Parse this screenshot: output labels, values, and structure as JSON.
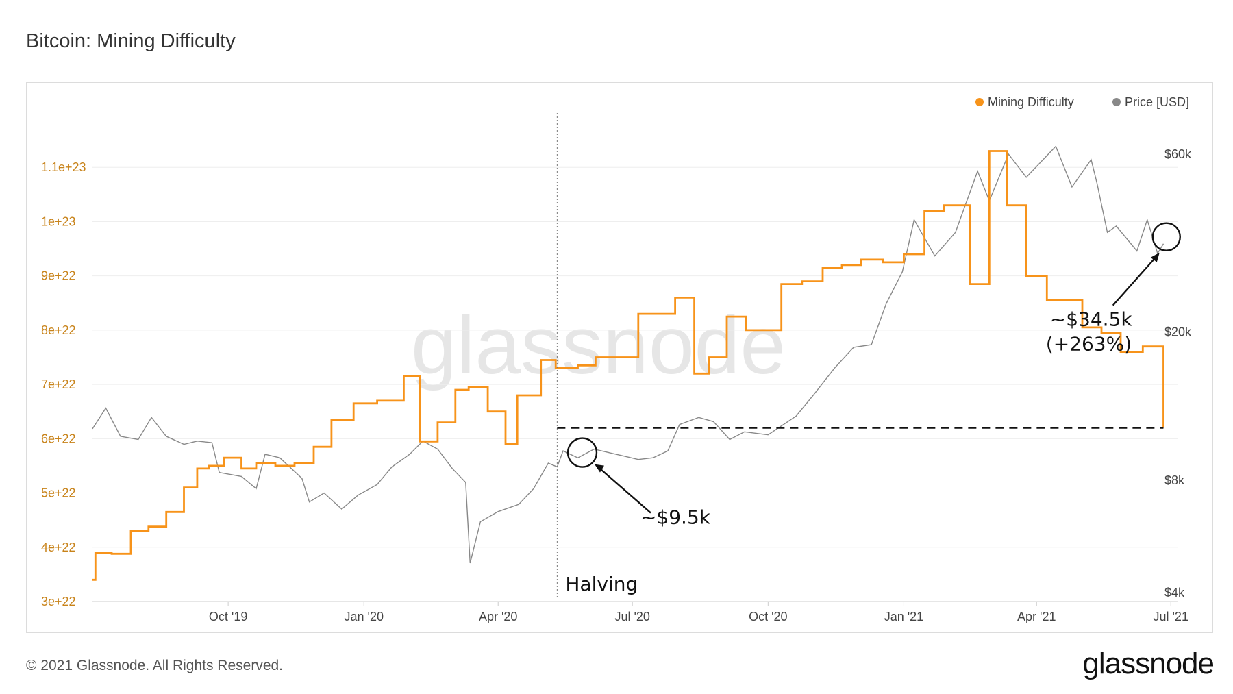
{
  "title": "Bitcoin: Mining Difficulty",
  "footer": "© 2021 Glassnode. All Rights Reserved.",
  "brand": "glassnode",
  "watermark": "glassnode",
  "colors": {
    "difficulty": "#f7931a",
    "price": "#888888",
    "left_axis": "#c8831a"
  },
  "chart_data": {
    "type": "line",
    "title": "Bitcoin: Mining Difficulty",
    "x_range": [
      "2019-07-01",
      "2021-07-06"
    ],
    "x_ticks": [
      {
        "date": "2019-10-01",
        "label": "Oct '19"
      },
      {
        "date": "2020-01-01",
        "label": "Jan '20"
      },
      {
        "date": "2020-04-01",
        "label": "Apr '20"
      },
      {
        "date": "2020-07-01",
        "label": "Jul '20"
      },
      {
        "date": "2020-10-01",
        "label": "Oct '20"
      },
      {
        "date": "2021-01-01",
        "label": "Jan '21"
      },
      {
        "date": "2021-04-01",
        "label": "Apr '21"
      },
      {
        "date": "2021-07-01",
        "label": "Jul '21"
      }
    ],
    "left_axis": {
      "range": [
        3e+22,
        1.2e+23
      ],
      "ticks": [
        {
          "value": 3e+22,
          "label": "3e+22"
        },
        {
          "value": 4e+22,
          "label": "4e+22"
        },
        {
          "value": 5e+22,
          "label": "5e+22"
        },
        {
          "value": 6e+22,
          "label": "6e+22"
        },
        {
          "value": 7e+22,
          "label": "7e+22"
        },
        {
          "value": 8e+22,
          "label": "8e+22"
        },
        {
          "value": 9e+22,
          "label": "9e+22"
        },
        {
          "value": 1e+23,
          "label": "1e+23"
        },
        {
          "value": 1.1e+23,
          "label": "1.1e+23"
        }
      ]
    },
    "right_axis": {
      "scale": "log",
      "range": [
        4000,
        60000
      ],
      "ticks": [
        {
          "value": 4000,
          "label": "$4k"
        },
        {
          "value": 8000,
          "label": "$8k"
        },
        {
          "value": 20000,
          "label": "$20k"
        },
        {
          "value": 60000,
          "label": "$60k"
        }
      ]
    },
    "legend": {
      "placement": "top-right",
      "items": [
        "Mining Difficulty",
        "Price [USD]"
      ]
    },
    "grid": true,
    "series": [
      {
        "name": "Mining Difficulty",
        "axis": "left",
        "step": true,
        "points": [
          [
            "2019-07-01",
            3.4e+22
          ],
          [
            "2019-07-03",
            3.9e+22
          ],
          [
            "2019-07-14",
            3.88e+22
          ],
          [
            "2019-07-27",
            4.3e+22
          ],
          [
            "2019-08-08",
            4.38e+22
          ],
          [
            "2019-08-20",
            4.65e+22
          ],
          [
            "2019-09-01",
            5.1e+22
          ],
          [
            "2019-09-10",
            5.45e+22
          ],
          [
            "2019-09-18",
            5.5e+22
          ],
          [
            "2019-09-28",
            5.65e+22
          ],
          [
            "2019-10-10",
            5.45e+22
          ],
          [
            "2019-10-20",
            5.55e+22
          ],
          [
            "2019-11-02",
            5.5e+22
          ],
          [
            "2019-11-15",
            5.55e+22
          ],
          [
            "2019-11-28",
            5.85e+22
          ],
          [
            "2019-12-10",
            6.35e+22
          ],
          [
            "2019-12-25",
            6.65e+22
          ],
          [
            "2020-01-10",
            6.7e+22
          ],
          [
            "2020-01-28",
            7.15e+22
          ],
          [
            "2020-02-08",
            5.95e+22
          ],
          [
            "2020-02-20",
            6.3e+22
          ],
          [
            "2020-03-03",
            6.9e+22
          ],
          [
            "2020-03-12",
            6.95e+22
          ],
          [
            "2020-03-25",
            6.5e+22
          ],
          [
            "2020-04-06",
            5.9e+22
          ],
          [
            "2020-04-14",
            6.8e+22
          ],
          [
            "2020-04-30",
            7.45e+22
          ],
          [
            "2020-05-10",
            7.3e+22
          ],
          [
            "2020-05-25",
            7.35e+22
          ],
          [
            "2020-06-06",
            7.5e+22
          ],
          [
            "2020-06-20",
            7.5e+22
          ],
          [
            "2020-07-05",
            8.3e+22
          ],
          [
            "2020-07-20",
            8.3e+22
          ],
          [
            "2020-07-30",
            8.6e+22
          ],
          [
            "2020-08-12",
            7.2e+22
          ],
          [
            "2020-08-22",
            7.5e+22
          ],
          [
            "2020-09-03",
            8.25e+22
          ],
          [
            "2020-09-16",
            8e+22
          ],
          [
            "2020-09-28",
            8e+22
          ],
          [
            "2020-10-10",
            8.85e+22
          ],
          [
            "2020-10-24",
            8.9e+22
          ],
          [
            "2020-11-07",
            9.15e+22
          ],
          [
            "2020-11-20",
            9.2e+22
          ],
          [
            "2020-12-03",
            9.3e+22
          ],
          [
            "2020-12-18",
            9.25e+22
          ],
          [
            "2021-01-01",
            9.4e+22
          ],
          [
            "2021-01-15",
            1.02e+23
          ],
          [
            "2021-01-28",
            1.03e+23
          ],
          [
            "2021-02-15",
            8.85e+22
          ],
          [
            "2021-02-28",
            1.13e+23
          ],
          [
            "2021-03-12",
            1.03e+23
          ],
          [
            "2021-03-25",
            9e+22
          ],
          [
            "2021-04-08",
            8.55e+22
          ],
          [
            "2021-04-20",
            8.55e+22
          ],
          [
            "2021-05-02",
            8.05e+22
          ],
          [
            "2021-05-15",
            7.95e+22
          ],
          [
            "2021-05-28",
            7.6e+22
          ],
          [
            "2021-06-12",
            7.7e+22
          ],
          [
            "2021-06-26",
            6.2e+22
          ]
        ]
      },
      {
        "name": "Price [USD]",
        "axis": "right",
        "points": [
          [
            "2019-07-01",
            11000
          ],
          [
            "2019-07-10",
            12500
          ],
          [
            "2019-07-20",
            10500
          ],
          [
            "2019-08-01",
            10300
          ],
          [
            "2019-08-10",
            11800
          ],
          [
            "2019-08-20",
            10500
          ],
          [
            "2019-09-01",
            10000
          ],
          [
            "2019-09-10",
            10200
          ],
          [
            "2019-09-20",
            10100
          ],
          [
            "2019-09-25",
            8400
          ],
          [
            "2019-10-10",
            8200
          ],
          [
            "2019-10-20",
            7600
          ],
          [
            "2019-10-26",
            9400
          ],
          [
            "2019-11-05",
            9200
          ],
          [
            "2019-11-20",
            8100
          ],
          [
            "2019-11-25",
            7000
          ],
          [
            "2019-12-05",
            7400
          ],
          [
            "2019-12-17",
            6700
          ],
          [
            "2019-12-28",
            7300
          ],
          [
            "2020-01-10",
            7800
          ],
          [
            "2020-01-20",
            8700
          ],
          [
            "2020-02-01",
            9400
          ],
          [
            "2020-02-10",
            10200
          ],
          [
            "2020-02-20",
            9700
          ],
          [
            "2020-03-01",
            8600
          ],
          [
            "2020-03-10",
            7900
          ],
          [
            "2020-03-13",
            4800
          ],
          [
            "2020-03-20",
            6200
          ],
          [
            "2020-04-01",
            6600
          ],
          [
            "2020-04-15",
            6900
          ],
          [
            "2020-04-25",
            7600
          ],
          [
            "2020-05-05",
            8900
          ],
          [
            "2020-05-11",
            8700
          ],
          [
            "2020-05-15",
            9600
          ],
          [
            "2020-05-25",
            9200
          ],
          [
            "2020-06-05",
            9700
          ],
          [
            "2020-06-15",
            9500
          ],
          [
            "2020-06-25",
            9300
          ],
          [
            "2020-07-05",
            9100
          ],
          [
            "2020-07-15",
            9200
          ],
          [
            "2020-07-25",
            9600
          ],
          [
            "2020-08-02",
            11300
          ],
          [
            "2020-08-15",
            11800
          ],
          [
            "2020-08-25",
            11500
          ],
          [
            "2020-09-05",
            10300
          ],
          [
            "2020-09-15",
            10800
          ],
          [
            "2020-10-01",
            10600
          ],
          [
            "2020-10-20",
            11900
          ],
          [
            "2020-11-01",
            13600
          ],
          [
            "2020-11-15",
            16000
          ],
          [
            "2020-11-28",
            18200
          ],
          [
            "2020-12-10",
            18500
          ],
          [
            "2020-12-20",
            23800
          ],
          [
            "2020-12-31",
            29000
          ],
          [
            "2021-01-08",
            40000
          ],
          [
            "2021-01-22",
            32000
          ],
          [
            "2021-02-05",
            37000
          ],
          [
            "2021-02-20",
            54000
          ],
          [
            "2021-02-28",
            45000
          ],
          [
            "2021-03-13",
            60000
          ],
          [
            "2021-03-25",
            52000
          ],
          [
            "2021-04-14",
            63000
          ],
          [
            "2021-04-25",
            49000
          ],
          [
            "2021-05-08",
            58000
          ],
          [
            "2021-05-12",
            50000
          ],
          [
            "2021-05-19",
            37000
          ],
          [
            "2021-05-25",
            38500
          ],
          [
            "2021-06-08",
            33000
          ],
          [
            "2021-06-15",
            40000
          ],
          [
            "2021-06-22",
            32500
          ],
          [
            "2021-06-26",
            34500
          ]
        ]
      }
    ],
    "annotations": [
      {
        "text": "Halving",
        "date": "2020-05-11"
      },
      {
        "text": "~$9.5k",
        "date": "2020-05-28"
      },
      {
        "text": "~$34.5k",
        "date": "2021-06-26"
      },
      {
        "text": "(+263%)",
        "date": "2021-06-26"
      }
    ],
    "reference_line": {
      "value": 6.2e+22,
      "from": "2020-05-11",
      "to": "2021-06-26",
      "style": "dashed"
    }
  }
}
